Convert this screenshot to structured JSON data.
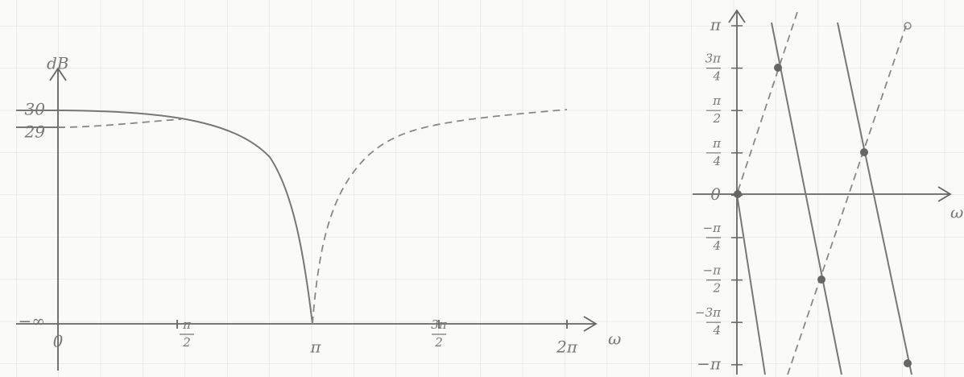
{
  "magnitude_plot": {
    "y_axis_label": "dB",
    "x_axis_label": "ω",
    "y_labels": [
      "30",
      "29",
      "−∞"
    ],
    "x_labels": [
      {
        "text": "0"
      },
      {
        "num": "π",
        "den": "2"
      },
      {
        "text": "π"
      },
      {
        "num": "3π",
        "den": "2"
      },
      {
        "text": "2π"
      }
    ]
  },
  "phase_plot": {
    "x_axis_label": "ω",
    "y_labels": [
      {
        "text": "π"
      },
      {
        "num": "3π",
        "den": "4"
      },
      {
        "num": "π",
        "den": "2"
      },
      {
        "num": "π",
        "den": "4"
      },
      {
        "text": "0"
      },
      {
        "num": "−π",
        "den": "4"
      },
      {
        "num": "−π",
        "den": "2"
      },
      {
        "num": "−3π",
        "den": "4"
      },
      {
        "text": "−π"
      }
    ]
  }
}
